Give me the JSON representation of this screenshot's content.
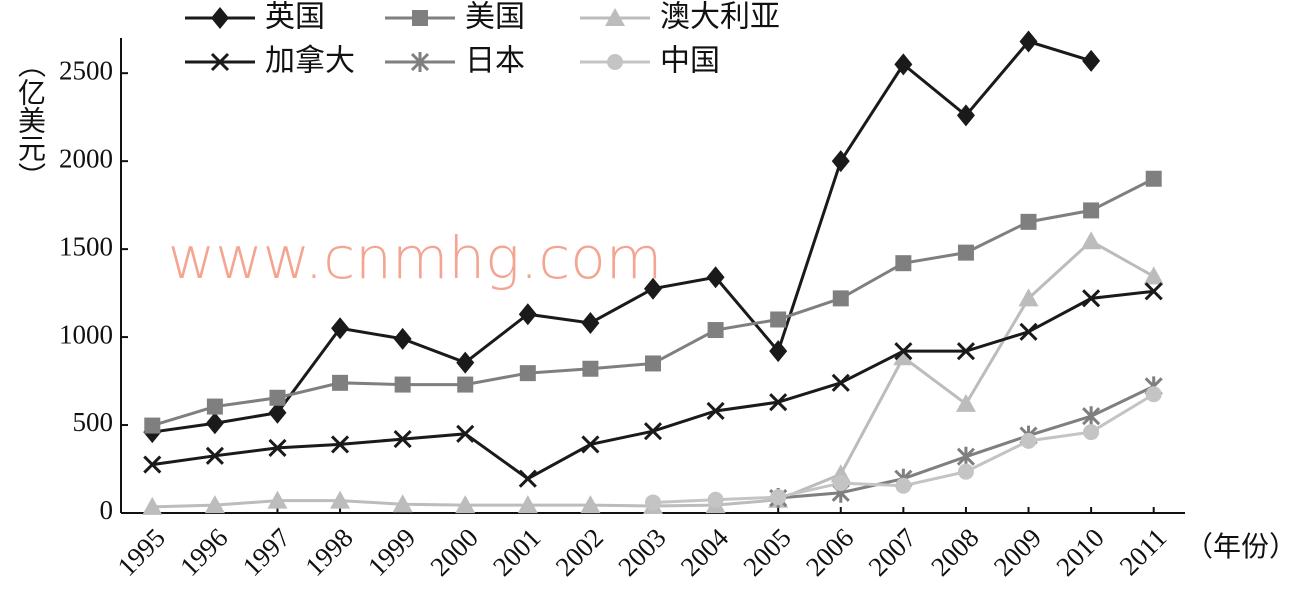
{
  "chart_data": {
    "type": "line",
    "y_label": "（亿美元）",
    "x_label": "（年份）",
    "watermark": "www.cnmhg.com",
    "categories": [
      "1995",
      "1996",
      "1997",
      "1998",
      "1999",
      "2000",
      "2001",
      "2002",
      "2003",
      "2004",
      "2005",
      "2006",
      "2007",
      "2008",
      "2009",
      "2010",
      "2011"
    ],
    "ylim": [
      0,
      2700
    ],
    "yticks": [
      0,
      500,
      1000,
      1500,
      2000,
      2500
    ],
    "grid": false,
    "series": [
      {
        "name": "英国",
        "color": "#1a1a1a",
        "marker": "diamond",
        "values": [
          460,
          510,
          570,
          1050,
          990,
          855,
          1130,
          1080,
          1275,
          1340,
          920,
          2000,
          2550,
          2260,
          2680,
          2570,
          null
        ]
      },
      {
        "name": "美国",
        "color": "#7f7f7f",
        "marker": "square",
        "values": [
          497,
          605,
          655,
          740,
          730,
          730,
          795,
          820,
          850,
          1040,
          1100,
          1220,
          1420,
          1480,
          1655,
          1720,
          1900
        ]
      },
      {
        "name": "澳大利亚",
        "color": "#bcbcbc",
        "marker": "triangle",
        "values": [
          35,
          45,
          70,
          70,
          50,
          45,
          45,
          45,
          40,
          45,
          75,
          220,
          885,
          620,
          1220,
          1545,
          1345
        ]
      },
      {
        "name": "加拿大",
        "color": "#1a1a1a",
        "marker": "x",
        "values": [
          275,
          325,
          370,
          390,
          420,
          450,
          195,
          390,
          465,
          580,
          630,
          740,
          920,
          920,
          1030,
          1220,
          1260
        ]
      },
      {
        "name": "日本",
        "color": "#7f7f7f",
        "marker": "asterisk",
        "values": [
          null,
          null,
          null,
          null,
          null,
          null,
          null,
          null,
          null,
          null,
          85,
          115,
          195,
          320,
          440,
          550,
          720
        ]
      },
      {
        "name": "中国",
        "color": "#c4c4c4",
        "marker": "circle",
        "values": [
          null,
          null,
          null,
          null,
          null,
          null,
          null,
          null,
          60,
          75,
          90,
          170,
          155,
          235,
          410,
          460,
          675
        ]
      }
    ]
  }
}
